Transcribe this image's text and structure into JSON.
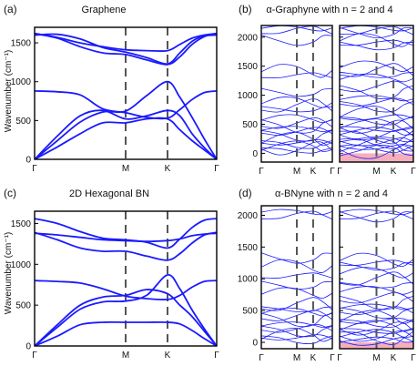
{
  "colors": {
    "band": "#1a1aff",
    "gap_fill": "#f4a0b0",
    "dash": "#555555",
    "frame": "#000000"
  },
  "panels": [
    {
      "letter": "(a)",
      "title": "Graphene"
    },
    {
      "letter": "(b)",
      "title": "α-Graphyne with n = 2 and 4"
    },
    {
      "letter": "(c)",
      "title": "2D Hexagonal BN"
    },
    {
      "letter": "(d)",
      "title": "α-BNyne with n = 2 and 4"
    }
  ],
  "ylabel": "Wavenumber (cm⁻¹)",
  "kpoints": [
    "Γ",
    "M",
    "K",
    "Γ"
  ],
  "chart_data": [
    {
      "type": "line",
      "title": "Graphene",
      "ylabel": "Wavenumber (cm⁻¹)",
      "x_ticks": [
        "Γ",
        "M",
        "K",
        "Γ"
      ],
      "ylim": [
        0,
        1700
      ],
      "yticks": [
        0,
        500,
        1000,
        1500
      ],
      "series": [
        {
          "x": [
            0,
            0.5,
            1,
            1.5,
            2,
            2.5,
            3,
            3.5,
            4,
            4.5,
            5
          ],
          "values": [
            0,
            300,
            560,
            630,
            520,
            560,
            630,
            560,
            330,
            150,
            0
          ]
        },
        {
          "x": [
            0,
            0.5,
            1,
            1.5,
            2,
            2.5,
            3,
            3.5,
            4,
            4.5,
            5
          ],
          "values": [
            0,
            160,
            330,
            470,
            470,
            520,
            520,
            380,
            240,
            120,
            0
          ]
        },
        {
          "x": [
            0,
            0.5,
            1,
            1.5,
            2,
            2.5,
            3,
            3.5,
            4,
            4.5,
            5
          ],
          "values": [
            0,
            240,
            480,
            610,
            620,
            820,
            1000,
            800,
            540,
            260,
            0
          ]
        },
        {
          "x": [
            0,
            0.5,
            1,
            1.5,
            2,
            2.5,
            3,
            3.5,
            4,
            4.5,
            5
          ],
          "values": [
            880,
            870,
            830,
            650,
            600,
            540,
            530,
            640,
            770,
            860,
            880
          ]
        },
        {
          "x": [
            0,
            0.5,
            1,
            1.5,
            2,
            2.5,
            3,
            3.5,
            4,
            4.5,
            5
          ],
          "values": [
            1620,
            1560,
            1450,
            1370,
            1350,
            1280,
            1220,
            1320,
            1480,
            1580,
            1620
          ]
        },
        {
          "x": [
            0,
            0.5,
            1,
            1.5,
            2,
            2.5,
            3,
            3.5,
            4,
            4.5,
            5
          ],
          "values": [
            1600,
            1610,
            1550,
            1440,
            1380,
            1310,
            1230,
            1370,
            1520,
            1590,
            1600
          ]
        },
        {
          "x": [
            0,
            0.5,
            1,
            1.5,
            2,
            2.5,
            3,
            3.5,
            4,
            4.5,
            5
          ],
          "values": [
            1620,
            1570,
            1500,
            1450,
            1410,
            1400,
            1400,
            1480,
            1560,
            1600,
            1620
          ]
        }
      ]
    },
    {
      "type": "line",
      "title": "α-Graphyne with n = 2 and 4",
      "x_ticks": [
        "Γ",
        "M",
        "K",
        "Γ"
      ],
      "ylim": [
        -150,
        2200
      ],
      "yticks": [
        0,
        500,
        1000,
        1500,
        2000
      ],
      "subpanels": [
        {
          "flat_bands": [
            2150,
            2120,
            1950,
            1420,
            1340,
            1050,
            880,
            820,
            760,
            600,
            520,
            460,
            420,
            380,
            300,
            250,
            190,
            150,
            120,
            90,
            50
          ]
        },
        {
          "flat_bands": [
            2150,
            2110,
            2080,
            1950,
            1900,
            1850,
            1500,
            1430,
            1350,
            1300,
            1150,
            1050,
            950,
            880,
            800,
            700,
            620,
            560,
            500,
            460,
            420,
            380,
            320,
            280,
            240,
            200,
            170,
            140,
            110,
            80,
            50,
            20
          ],
          "imaginary_region": [
            -150,
            0
          ]
        }
      ]
    },
    {
      "type": "line",
      "title": "2D Hexagonal BN",
      "ylabel": "Wavenumber (cm⁻¹)",
      "x_ticks": [
        "Γ",
        "M",
        "K",
        "Γ"
      ],
      "ylim": [
        0,
        1650
      ],
      "yticks": [
        0,
        500,
        1000,
        1500
      ],
      "series": [
        {
          "x": [
            0,
            0.5,
            1,
            1.5,
            2,
            2.5,
            3,
            3.5,
            4,
            4.5,
            5
          ],
          "values": [
            0,
            120,
            260,
            290,
            290,
            290,
            290,
            270,
            190,
            90,
            0
          ]
        },
        {
          "x": [
            0,
            0.5,
            1,
            1.5,
            2,
            2.5,
            3,
            3.5,
            4,
            4.5,
            5
          ],
          "values": [
            0,
            230,
            450,
            540,
            550,
            620,
            870,
            700,
            440,
            210,
            0
          ]
        },
        {
          "x": [
            0,
            0.5,
            1,
            1.5,
            2,
            2.5,
            3,
            3.5,
            4,
            4.5,
            5
          ],
          "values": [
            0,
            260,
            500,
            600,
            620,
            690,
            640,
            500,
            360,
            180,
            0
          ]
        },
        {
          "x": [
            0,
            0.5,
            1,
            1.5,
            2,
            2.5,
            3,
            3.5,
            4,
            4.5,
            5
          ],
          "values": [
            800,
            790,
            770,
            700,
            610,
            580,
            570,
            620,
            720,
            790,
            800
          ]
        },
        {
          "x": [
            0,
            0.5,
            1,
            1.5,
            2,
            2.5,
            3,
            3.5,
            4,
            4.5,
            5
          ],
          "values": [
            1390,
            1300,
            1200,
            1160,
            1160,
            1100,
            1050,
            1130,
            1260,
            1360,
            1390
          ]
        },
        {
          "x": [
            0,
            0.5,
            1,
            1.5,
            2,
            2.5,
            3,
            3.5,
            4,
            4.5,
            5
          ],
          "values": [
            1560,
            1500,
            1400,
            1320,
            1300,
            1270,
            1200,
            1310,
            1450,
            1540,
            1560
          ]
        },
        {
          "x": [
            0,
            0.5,
            1,
            1.5,
            2,
            2.5,
            3,
            3.5,
            4,
            4.5,
            5
          ],
          "values": [
            1380,
            1360,
            1330,
            1300,
            1290,
            1280,
            1290,
            1310,
            1350,
            1370,
            1380
          ]
        }
      ]
    },
    {
      "type": "line",
      "title": "α-BNyne with n = 2 and 4",
      "x_ticks": [
        "Γ",
        "M",
        "K",
        "Γ"
      ],
      "ylim": [
        -100,
        2150
      ],
      "yticks": [
        0,
        500,
        1000,
        1500,
        2000
      ],
      "subpanels": [
        {
          "flat_bands": [
            2050,
            2000,
            1330,
            1200,
            1050,
            900,
            780,
            600,
            520,
            480,
            420,
            350,
            280,
            220,
            170,
            120,
            80,
            40
          ]
        },
        {
          "flat_bands": [
            2050,
            2000,
            1980,
            1300,
            1250,
            1200,
            1100,
            1000,
            900,
            820,
            700,
            620,
            560,
            500,
            460,
            400,
            340,
            300,
            260,
            220,
            180,
            140,
            100,
            70,
            40,
            15
          ],
          "imaginary_region": [
            -100,
            0
          ]
        }
      ]
    }
  ]
}
